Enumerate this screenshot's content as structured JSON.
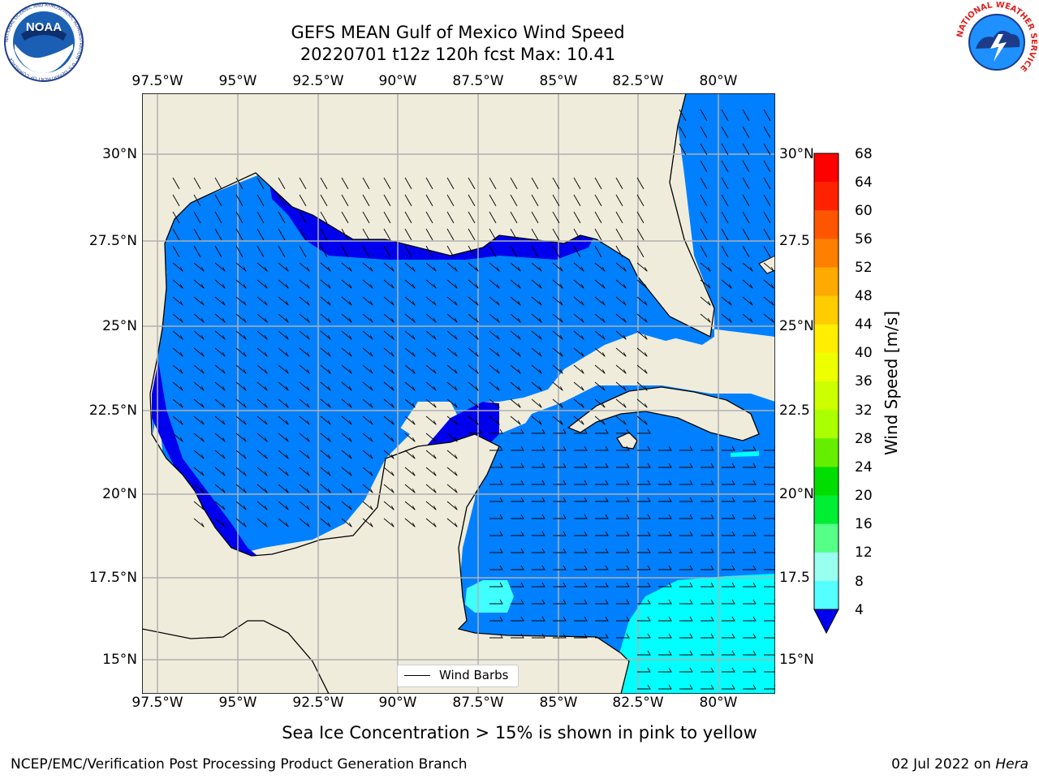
{
  "title": {
    "line1": "GEFS MEAN Gulf of Mexico Wind Speed",
    "line2": "20220701 t12z 120h fcst   Max: 10.41"
  },
  "map": {
    "lon_labels": [
      "97.5°W",
      "95°W",
      "92.5°W",
      "90°W",
      "87.5°W",
      "85°W",
      "82.5°W",
      "80°W"
    ],
    "lat_labels_left": [
      "30°N",
      "27.5°N",
      "25°N",
      "22.5°N",
      "20°N",
      "17.5°N",
      "15°N"
    ],
    "lat_labels_right": [
      "30°N",
      "27.5",
      "25°N",
      "22.5",
      "20°N",
      "17.5",
      "15°N"
    ],
    "legend_label": "Wind Barbs",
    "colors": {
      "land": "#efecdc",
      "speed_4_8": "#0080ff",
      "speed_below_4": "#0000ee",
      "speed_8_12": "#00ffff",
      "speed_12_16": "#40ffff",
      "grid": "#b0b0b0"
    }
  },
  "colorbar": {
    "label": "Wind Speed [m/s]",
    "ticks": [
      "68",
      "64",
      "60",
      "56",
      "52",
      "48",
      "44",
      "40",
      "36",
      "32",
      "28",
      "24",
      "20",
      "16",
      "12",
      "8",
      "4"
    ],
    "colors": [
      "#ff0000",
      "#ff2200",
      "#ff5500",
      "#ff8000",
      "#ffaa00",
      "#ffcc00",
      "#ffee00",
      "#eeff00",
      "#ccff00",
      "#aaff00",
      "#66ee00",
      "#00dd00",
      "#00ee33",
      "#55ff88",
      "#99ffee",
      "#55ffff",
      "#00ffff",
      "#0080ff"
    ],
    "extend_color": "#0000ee"
  },
  "notes": {
    "sea_ice": "Sea Ice Concentration > 15% is shown in pink to yellow"
  },
  "footer": {
    "left": "NCEP/EMC/Verification Post Processing Product Generation Branch",
    "date": "02 Jul 2022 on ",
    "machine": "Hera"
  },
  "logos": {
    "noaa_text": "NOAA",
    "noaa_ring": "NATIONAL OCEANIC AND ATMOSPHERIC ADMINISTRATION · U.S. DEPARTMENT OF COMMERCE",
    "nws_ring": "NATIONAL WEATHER SERVICE"
  }
}
